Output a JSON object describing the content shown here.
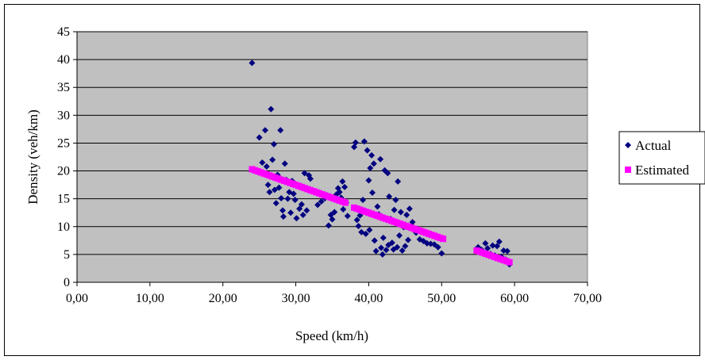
{
  "chart_data": {
    "type": "scatter",
    "xlabel": "Speed (km/h)",
    "ylabel": "Density (veh/km)",
    "xlim": [
      0,
      70
    ],
    "ylim": [
      0,
      45
    ],
    "x_ticks": [
      "0,00",
      "10,00",
      "20,00",
      "30,00",
      "40,00",
      "50,00",
      "60,00",
      "70,00"
    ],
    "y_ticks": [
      "0",
      "5",
      "10",
      "15",
      "20",
      "25",
      "30",
      "35",
      "40",
      "45"
    ],
    "grid": "horizontal",
    "legend_position": "right",
    "plot_background": "#c0c0c0",
    "series": [
      {
        "name": "Actual",
        "marker": "diamond",
        "color": "#000080",
        "points": [
          [
            24.0,
            39.4
          ],
          [
            25.0,
            26.0
          ],
          [
            25.4,
            21.5
          ],
          [
            25.8,
            27.3
          ],
          [
            26.0,
            20.8
          ],
          [
            26.2,
            17.5
          ],
          [
            26.4,
            16.2
          ],
          [
            26.6,
            31.1
          ],
          [
            26.8,
            22.0
          ],
          [
            27.0,
            24.8
          ],
          [
            27.1,
            16.6
          ],
          [
            27.3,
            14.2
          ],
          [
            27.5,
            19.3
          ],
          [
            27.7,
            17.0
          ],
          [
            27.9,
            27.3
          ],
          [
            28.0,
            15.1
          ],
          [
            28.2,
            12.9
          ],
          [
            28.3,
            11.8
          ],
          [
            28.5,
            21.3
          ],
          [
            28.7,
            18.4
          ],
          [
            28.9,
            15.0
          ],
          [
            29.1,
            16.2
          ],
          [
            29.3,
            12.5
          ],
          [
            29.5,
            18.2
          ],
          [
            29.7,
            15.9
          ],
          [
            29.9,
            14.8
          ],
          [
            30.1,
            11.5
          ],
          [
            30.3,
            17.4
          ],
          [
            30.5,
            13.2
          ],
          [
            30.8,
            14.0
          ],
          [
            31.0,
            12.1
          ],
          [
            31.2,
            19.6
          ],
          [
            31.5,
            12.9
          ],
          [
            31.8,
            19.2
          ],
          [
            32.0,
            18.6
          ],
          [
            33.0,
            13.9
          ],
          [
            33.5,
            14.5
          ],
          [
            34.0,
            15.1
          ],
          [
            34.5,
            10.2
          ],
          [
            34.8,
            12.1
          ],
          [
            35.0,
            11.3
          ],
          [
            35.3,
            12.6
          ],
          [
            35.6,
            15.8
          ],
          [
            35.8,
            16.9
          ],
          [
            36.0,
            16.2
          ],
          [
            36.2,
            15.2
          ],
          [
            36.4,
            18.1
          ],
          [
            36.5,
            13.1
          ],
          [
            36.7,
            17.1
          ],
          [
            36.9,
            14.3
          ],
          [
            37.1,
            11.9
          ],
          [
            38.0,
            24.3
          ],
          [
            38.2,
            25.1
          ],
          [
            38.4,
            11.2
          ],
          [
            38.6,
            10.1
          ],
          [
            38.8,
            12.0
          ],
          [
            39.0,
            9.0
          ],
          [
            39.2,
            14.8
          ],
          [
            39.4,
            25.3
          ],
          [
            39.6,
            8.7
          ],
          [
            39.8,
            23.7
          ],
          [
            40.0,
            18.3
          ],
          [
            40.1,
            9.4
          ],
          [
            40.2,
            20.5
          ],
          [
            40.4,
            22.8
          ],
          [
            40.5,
            16.1
          ],
          [
            40.7,
            21.3
          ],
          [
            40.8,
            7.5
          ],
          [
            41.0,
            5.6
          ],
          [
            41.2,
            13.6
          ],
          [
            41.4,
            12.2
          ],
          [
            41.6,
            22.1
          ],
          [
            41.7,
            6.2
          ],
          [
            41.9,
            5.0
          ],
          [
            42.0,
            8.0
          ],
          [
            42.2,
            20.1
          ],
          [
            42.4,
            5.8
          ],
          [
            42.6,
            19.6
          ],
          [
            42.7,
            6.7
          ],
          [
            42.8,
            15.4
          ],
          [
            43.0,
            11.4
          ],
          [
            43.2,
            7.1
          ],
          [
            43.4,
            5.9
          ],
          [
            43.5,
            13.0
          ],
          [
            43.7,
            14.8
          ],
          [
            43.9,
            6.3
          ],
          [
            44.0,
            18.1
          ],
          [
            44.2,
            8.4
          ],
          [
            44.4,
            12.6
          ],
          [
            44.6,
            5.7
          ],
          [
            44.8,
            9.9
          ],
          [
            45.0,
            6.5
          ],
          [
            45.2,
            12.1
          ],
          [
            45.4,
            7.6
          ],
          [
            45.6,
            13.2
          ],
          [
            46.0,
            10.8
          ],
          [
            46.5,
            8.9
          ],
          [
            47.0,
            7.7
          ],
          [
            47.5,
            7.4
          ],
          [
            48.0,
            7.0
          ],
          [
            48.5,
            6.9
          ],
          [
            49.0,
            6.8
          ],
          [
            49.5,
            6.3
          ],
          [
            50.0,
            5.2
          ],
          [
            55.0,
            6.3
          ],
          [
            55.5,
            5.8
          ],
          [
            56.0,
            7.0
          ],
          [
            56.3,
            6.1
          ],
          [
            56.7,
            5.1
          ],
          [
            57.0,
            6.6
          ],
          [
            57.3,
            4.8
          ],
          [
            57.6,
            6.5
          ],
          [
            57.9,
            7.3
          ],
          [
            58.2,
            4.6
          ],
          [
            58.5,
            5.7
          ],
          [
            58.8,
            4.1
          ],
          [
            59.0,
            5.6
          ],
          [
            59.3,
            3.2
          ]
        ]
      },
      {
        "name": "Estimated",
        "marker": "square",
        "color": "#ff00ff",
        "line_segments": [
          {
            "x_start": 24.0,
            "y_start": 20.3,
            "x_end": 36.8,
            "y_end": 14.3
          },
          {
            "x_start": 38.0,
            "y_start": 13.4,
            "x_end": 50.2,
            "y_end": 7.8
          },
          {
            "x_start": 54.8,
            "y_start": 5.7,
            "x_end": 59.3,
            "y_end": 3.6
          }
        ],
        "point_step": 0.4
      }
    ]
  }
}
